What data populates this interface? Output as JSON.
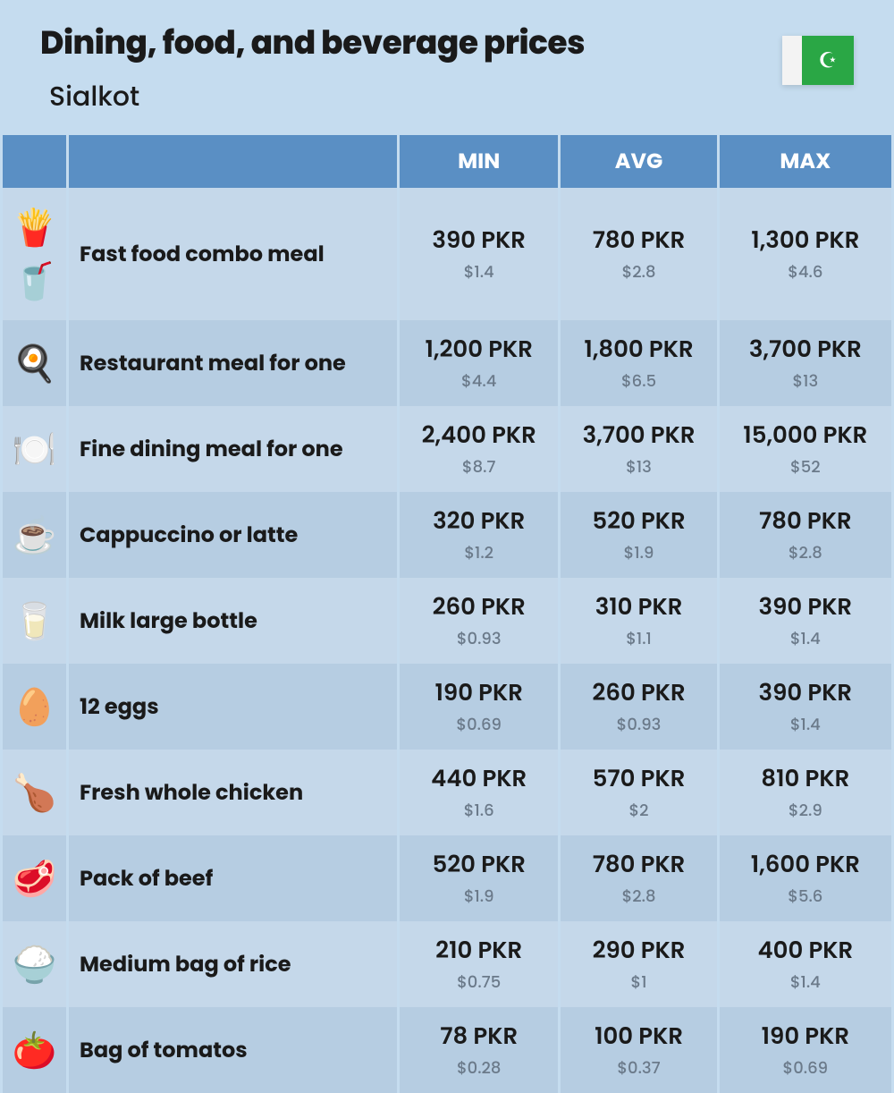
{
  "title": "Dining, food, and beverage prices",
  "subtitle": "Sialkot",
  "flag": {
    "stripe_color": "#f3f3f3",
    "field_color": "#2aa745",
    "symbol": "☪",
    "symbol_color": "#ffffff"
  },
  "columns": {
    "min": "MIN",
    "avg": "AVG",
    "max": "MAX"
  },
  "items": [
    {
      "icon": "🍟🥤",
      "name": "Fast food combo meal",
      "min_pkr": "390 PKR",
      "min_usd": "$1.4",
      "avg_pkr": "780 PKR",
      "avg_usd": "$2.8",
      "max_pkr": "1,300 PKR",
      "max_usd": "$4.6"
    },
    {
      "icon": "🍳",
      "name": "Restaurant meal for one",
      "min_pkr": "1,200 PKR",
      "min_usd": "$4.4",
      "avg_pkr": "1,800 PKR",
      "avg_usd": "$6.5",
      "max_pkr": "3,700 PKR",
      "max_usd": "$13"
    },
    {
      "icon": "🍽️",
      "name": "Fine dining meal for one",
      "min_pkr": "2,400 PKR",
      "min_usd": "$8.7",
      "avg_pkr": "3,700 PKR",
      "avg_usd": "$13",
      "max_pkr": "15,000 PKR",
      "max_usd": "$52"
    },
    {
      "icon": "☕",
      "name": "Cappuccino or latte",
      "min_pkr": "320 PKR",
      "min_usd": "$1.2",
      "avg_pkr": "520 PKR",
      "avg_usd": "$1.9",
      "max_pkr": "780 PKR",
      "max_usd": "$2.8"
    },
    {
      "icon": "🥛",
      "name": "Milk large bottle",
      "min_pkr": "260 PKR",
      "min_usd": "$0.93",
      "avg_pkr": "310 PKR",
      "avg_usd": "$1.1",
      "max_pkr": "390 PKR",
      "max_usd": "$1.4"
    },
    {
      "icon": "🥚",
      "name": "12 eggs",
      "min_pkr": "190 PKR",
      "min_usd": "$0.69",
      "avg_pkr": "260 PKR",
      "avg_usd": "$0.93",
      "max_pkr": "390 PKR",
      "max_usd": "$1.4"
    },
    {
      "icon": "🍗",
      "name": "Fresh whole chicken",
      "min_pkr": "440 PKR",
      "min_usd": "$1.6",
      "avg_pkr": "570 PKR",
      "avg_usd": "$2",
      "max_pkr": "810 PKR",
      "max_usd": "$2.9"
    },
    {
      "icon": "🥩",
      "name": "Pack of beef",
      "min_pkr": "520 PKR",
      "min_usd": "$1.9",
      "avg_pkr": "780 PKR",
      "avg_usd": "$2.8",
      "max_pkr": "1,600 PKR",
      "max_usd": "$5.6"
    },
    {
      "icon": "🍚",
      "name": "Medium bag of rice",
      "min_pkr": "210 PKR",
      "min_usd": "$0.75",
      "avg_pkr": "290 PKR",
      "avg_usd": "$1",
      "max_pkr": "400 PKR",
      "max_usd": "$1.4"
    },
    {
      "icon": "🍅",
      "name": "Bag of tomatos",
      "min_pkr": "78 PKR",
      "min_usd": "$0.28",
      "avg_pkr": "100 PKR",
      "avg_usd": "$0.37",
      "max_pkr": "190 PKR",
      "max_usd": "$0.69"
    }
  ],
  "style": {
    "page_bg": "#c5dcef",
    "header_bg": "#5a8fc4",
    "row_even_bg": "#c5d8ea",
    "row_odd_bg": "#b6cde2",
    "header_text": "#ffffff",
    "primary_text": "#1a1a1a",
    "secondary_text": "#6b7a8a",
    "title_fontsize": 36,
    "subtitle_fontsize": 30,
    "header_fontsize": 24,
    "name_fontsize": 24,
    "pkr_fontsize": 26,
    "usd_fontsize": 18
  }
}
